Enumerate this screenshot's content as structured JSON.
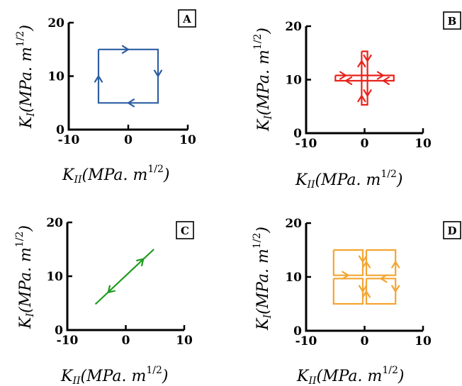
{
  "axis_text": {
    "x_symbol": "K",
    "x_sub": "II",
    "x_units": "MPa. m",
    "x_exp": "1/2",
    "y_symbol": "K",
    "y_sub": "I",
    "y_units": "MPa. m",
    "y_exp": "1/2"
  },
  "chart_data": [
    {
      "panel": "A",
      "type": "line",
      "xlim": [
        -10,
        10
      ],
      "ylim": [
        0,
        20
      ],
      "xticks": [
        "-10",
        "0",
        "10"
      ],
      "yticks": [
        "0",
        "10",
        "20"
      ],
      "color": "#2e5fa3",
      "paths": [
        [
          [
            -5,
            15
          ],
          [
            5,
            15
          ],
          [
            5,
            5
          ],
          [
            -5,
            5
          ],
          [
            -5,
            15
          ]
        ]
      ],
      "arrows": [
        [
          0,
          15,
          1,
          0
        ],
        [
          5,
          10,
          0,
          -1
        ],
        [
          0,
          5,
          -1,
          0
        ],
        [
          -5,
          10,
          0,
          1
        ]
      ]
    },
    {
      "panel": "B",
      "type": "line",
      "xlim": [
        -10,
        10
      ],
      "ylim": [
        0,
        20
      ],
      "xticks": [
        "-10",
        "0",
        "10"
      ],
      "yticks": [
        "0",
        "10",
        "20"
      ],
      "color": "#e8231b",
      "paths": [
        [
          [
            -5,
            10.8
          ],
          [
            5,
            10.8
          ],
          [
            5,
            9.8
          ],
          [
            -5,
            9.8
          ],
          [
            -5,
            10.8
          ]
        ],
        [
          [
            -0.5,
            15.3
          ],
          [
            0.5,
            15.3
          ],
          [
            0.5,
            5.3
          ],
          [
            -0.5,
            5.3
          ],
          [
            -0.5,
            15.3
          ]
        ]
      ],
      "arrows": [
        [
          3.2,
          10.8,
          1,
          0
        ],
        [
          3.2,
          9.8,
          -1,
          0
        ],
        [
          -3.2,
          10.8,
          1,
          0
        ],
        [
          -3.2,
          9.8,
          -1,
          0
        ],
        [
          -0.5,
          13.5,
          0,
          1
        ],
        [
          0.5,
          13.5,
          0,
          -1
        ],
        [
          -0.5,
          7,
          0,
          1
        ],
        [
          0.5,
          7,
          0,
          -1
        ]
      ]
    },
    {
      "panel": "C",
      "type": "line",
      "xlim": [
        -10,
        10
      ],
      "ylim": [
        0,
        20
      ],
      "xticks": [
        "-10",
        "0",
        "10"
      ],
      "yticks": [
        "0",
        "10",
        "20"
      ],
      "color": "#1e9a1e",
      "paths": [
        [
          [
            -5.2,
            4.8
          ],
          [
            4.8,
            15
          ]
        ]
      ],
      "arrows": [
        [
          3,
          13.2,
          1,
          1
        ],
        [
          -3,
          7,
          -1,
          -1
        ]
      ]
    },
    {
      "panel": "D",
      "type": "line",
      "xlim": [
        -10,
        10
      ],
      "ylim": [
        0,
        20
      ],
      "xticks": [
        "-10",
        "0",
        "10"
      ],
      "yticks": [
        "0",
        "10",
        "20"
      ],
      "color": "#f3a532",
      "paths": [
        [
          [
            -5.3,
            15
          ],
          [
            -0.3,
            15
          ],
          [
            -0.3,
            10.3
          ],
          [
            -5.3,
            10.3
          ],
          [
            -5.3,
            15
          ]
        ],
        [
          [
            0.3,
            15
          ],
          [
            5.3,
            15
          ],
          [
            5.3,
            10.3
          ],
          [
            0.3,
            10.3
          ],
          [
            0.3,
            15
          ]
        ],
        [
          [
            -5.3,
            9.7
          ],
          [
            -0.3,
            9.7
          ],
          [
            -0.3,
            5
          ],
          [
            -5.3,
            5
          ],
          [
            -5.3,
            9.7
          ]
        ],
        [
          [
            0.3,
            9.7
          ],
          [
            5.3,
            9.7
          ],
          [
            5.3,
            5
          ],
          [
            0.3,
            5
          ],
          [
            0.3,
            9.7
          ]
        ]
      ],
      "arrows": [
        [
          -2.8,
          10.3,
          1,
          0
        ],
        [
          2.8,
          9.7,
          -1,
          0
        ],
        [
          -0.3,
          12.8,
          0,
          -1
        ],
        [
          0.3,
          7.3,
          0,
          1
        ],
        [
          5.3,
          12.8,
          0,
          1
        ],
        [
          5.3,
          7.3,
          0,
          -1
        ],
        [
          -0.3,
          7.3,
          0,
          -1
        ],
        [
          0.3,
          12.8,
          0,
          1
        ]
      ]
    }
  ]
}
